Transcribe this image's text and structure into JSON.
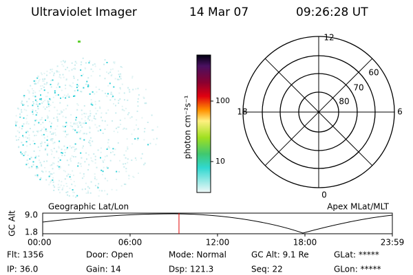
{
  "header": {
    "title": "Ultraviolet Imager",
    "date": "14 Mar 07",
    "time": "09:26:28 UT"
  },
  "colorbar": {
    "label": "photon cm⁻²s⁻¹",
    "ticks": [
      "100",
      "10"
    ]
  },
  "polar": {
    "mlt_labels": [
      "12",
      "18",
      "6",
      "0"
    ],
    "lat_labels": [
      "60",
      "70",
      "80"
    ]
  },
  "orbit": {
    "left_title": "Geographic Lat/Lon",
    "right_title": "Apex MLat/MLT",
    "y_label": "GC Alt",
    "y_ticks": [
      "9.0",
      "1.8"
    ],
    "x_ticks": [
      "00:00",
      "06:00",
      "12:00",
      "18:00",
      "23:59"
    ]
  },
  "info": {
    "rows": [
      [
        "Flt: 1356",
        "Door: Open",
        "Mode: Normal",
        "GC Alt: 9.1 Re",
        "GLat: *****"
      ],
      [
        "IP: 36.0",
        "Gain: 14",
        "Dsp: 121.3",
        "Seq: 22",
        "GLon: *****"
      ]
    ]
  }
}
